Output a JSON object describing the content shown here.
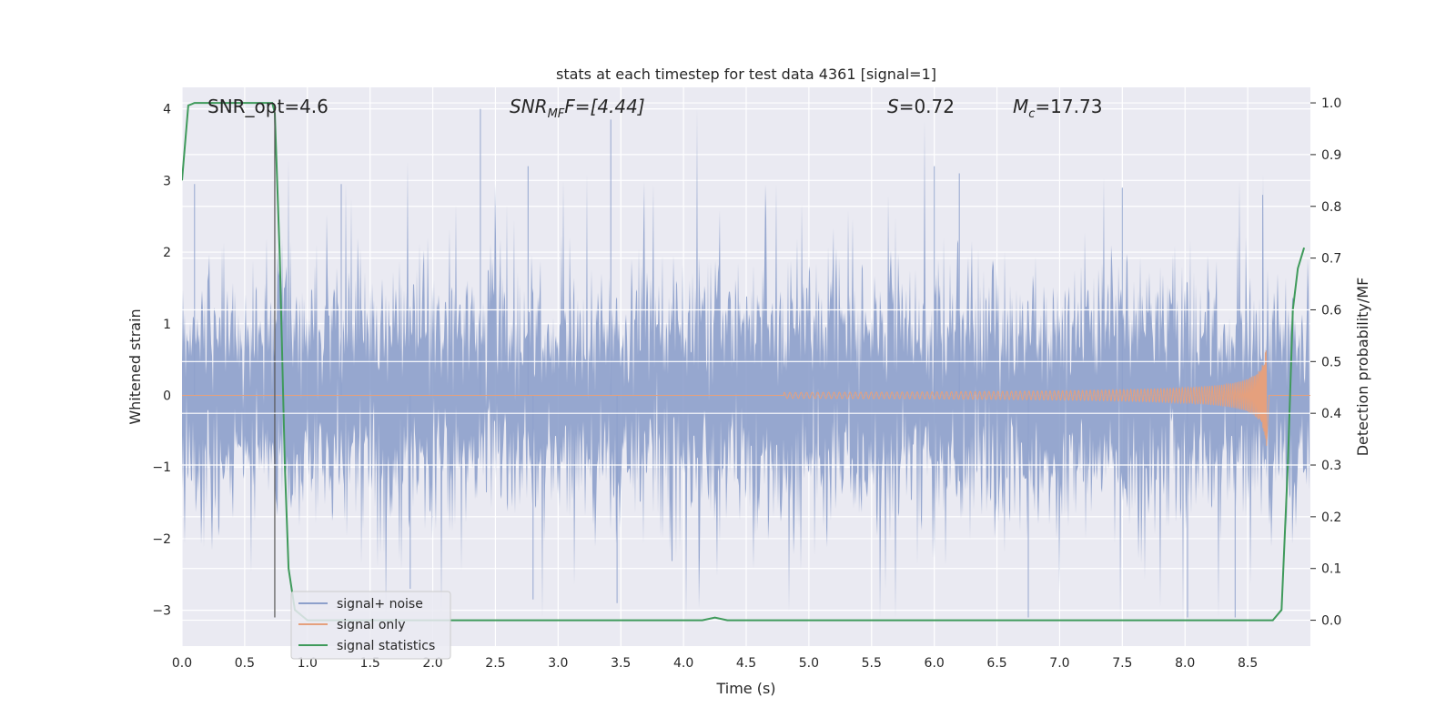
{
  "chart_data": {
    "type": "line",
    "title": "stats at each timestep for test data 4361 [signal=1]",
    "xlabel": "Time (s)",
    "ylabel": "Whitened strain",
    "y2label": "Detection probability/MF",
    "xlim": [
      0,
      9.0
    ],
    "ylim": [
      -3.5,
      4.3
    ],
    "y2lim": [
      -0.05,
      1.03
    ],
    "xticks": [
      "0.0",
      "0.5",
      "1.0",
      "1.5",
      "2.0",
      "2.5",
      "3.0",
      "3.5",
      "4.0",
      "4.5",
      "5.0",
      "5.5",
      "6.0",
      "6.5",
      "7.0",
      "7.5",
      "8.0",
      "8.5"
    ],
    "yticks": [
      "4",
      "3",
      "2",
      "1",
      "0",
      "−1",
      "−2",
      "−3"
    ],
    "y2ticks": [
      "1.0",
      "0.9",
      "0.8",
      "0.7",
      "0.6",
      "0.5",
      "0.4",
      "0.3",
      "0.2",
      "0.1",
      "0.0"
    ],
    "grid": true,
    "legend_position": "lower-left",
    "annotations": {
      "snr_opt": "SNR_opt=4.6",
      "snr_mf_base": "SNR",
      "snr_mf_sub": "MF",
      "snr_mf_rest": "F=[4.44]",
      "s_base": "S",
      "s_rest": "=0.72",
      "mc_base": "M",
      "mc_sub": "c",
      "mc_rest": "=17.73"
    },
    "series": [
      {
        "name": "signal+ noise",
        "color": "#8da0cb",
        "description_values": "noise-dominated strain, envelope roughly ±1.8, spikes to about +4.0 and −3.1"
      },
      {
        "name": "signal only",
        "color": "#e5a07d",
        "chirp_start": 4.8,
        "chirp_peak_time": 8.65,
        "chirp_peak_amplitude": 0.75
      },
      {
        "name": "signal statistics",
        "color": "#3f9a5b",
        "x": [
          0.0,
          0.05,
          0.1,
          0.2,
          0.4,
          0.6,
          0.72,
          0.74,
          0.78,
          0.82,
          0.85,
          0.9,
          1.0,
          2.0,
          3.0,
          4.0,
          4.15,
          4.25,
          4.35,
          4.5,
          5.0,
          6.0,
          7.0,
          8.0,
          8.7,
          8.77,
          8.82,
          8.86,
          8.9,
          8.95
        ],
        "values": [
          0.85,
          0.995,
          1.0,
          1.0,
          1.0,
          1.0,
          1.0,
          0.98,
          0.7,
          0.3,
          0.1,
          0.02,
          0.0,
          0.0,
          0.0,
          0.0,
          0.0,
          0.005,
          0.0,
          0.0,
          0.0,
          0.0,
          0.0,
          0.0,
          0.0,
          0.02,
          0.3,
          0.6,
          0.68,
          0.72
        ]
      }
    ],
    "vline_x": 0.74,
    "hlines_y2": [
      0.6,
      0.5,
      0.4,
      0.3
    ]
  }
}
